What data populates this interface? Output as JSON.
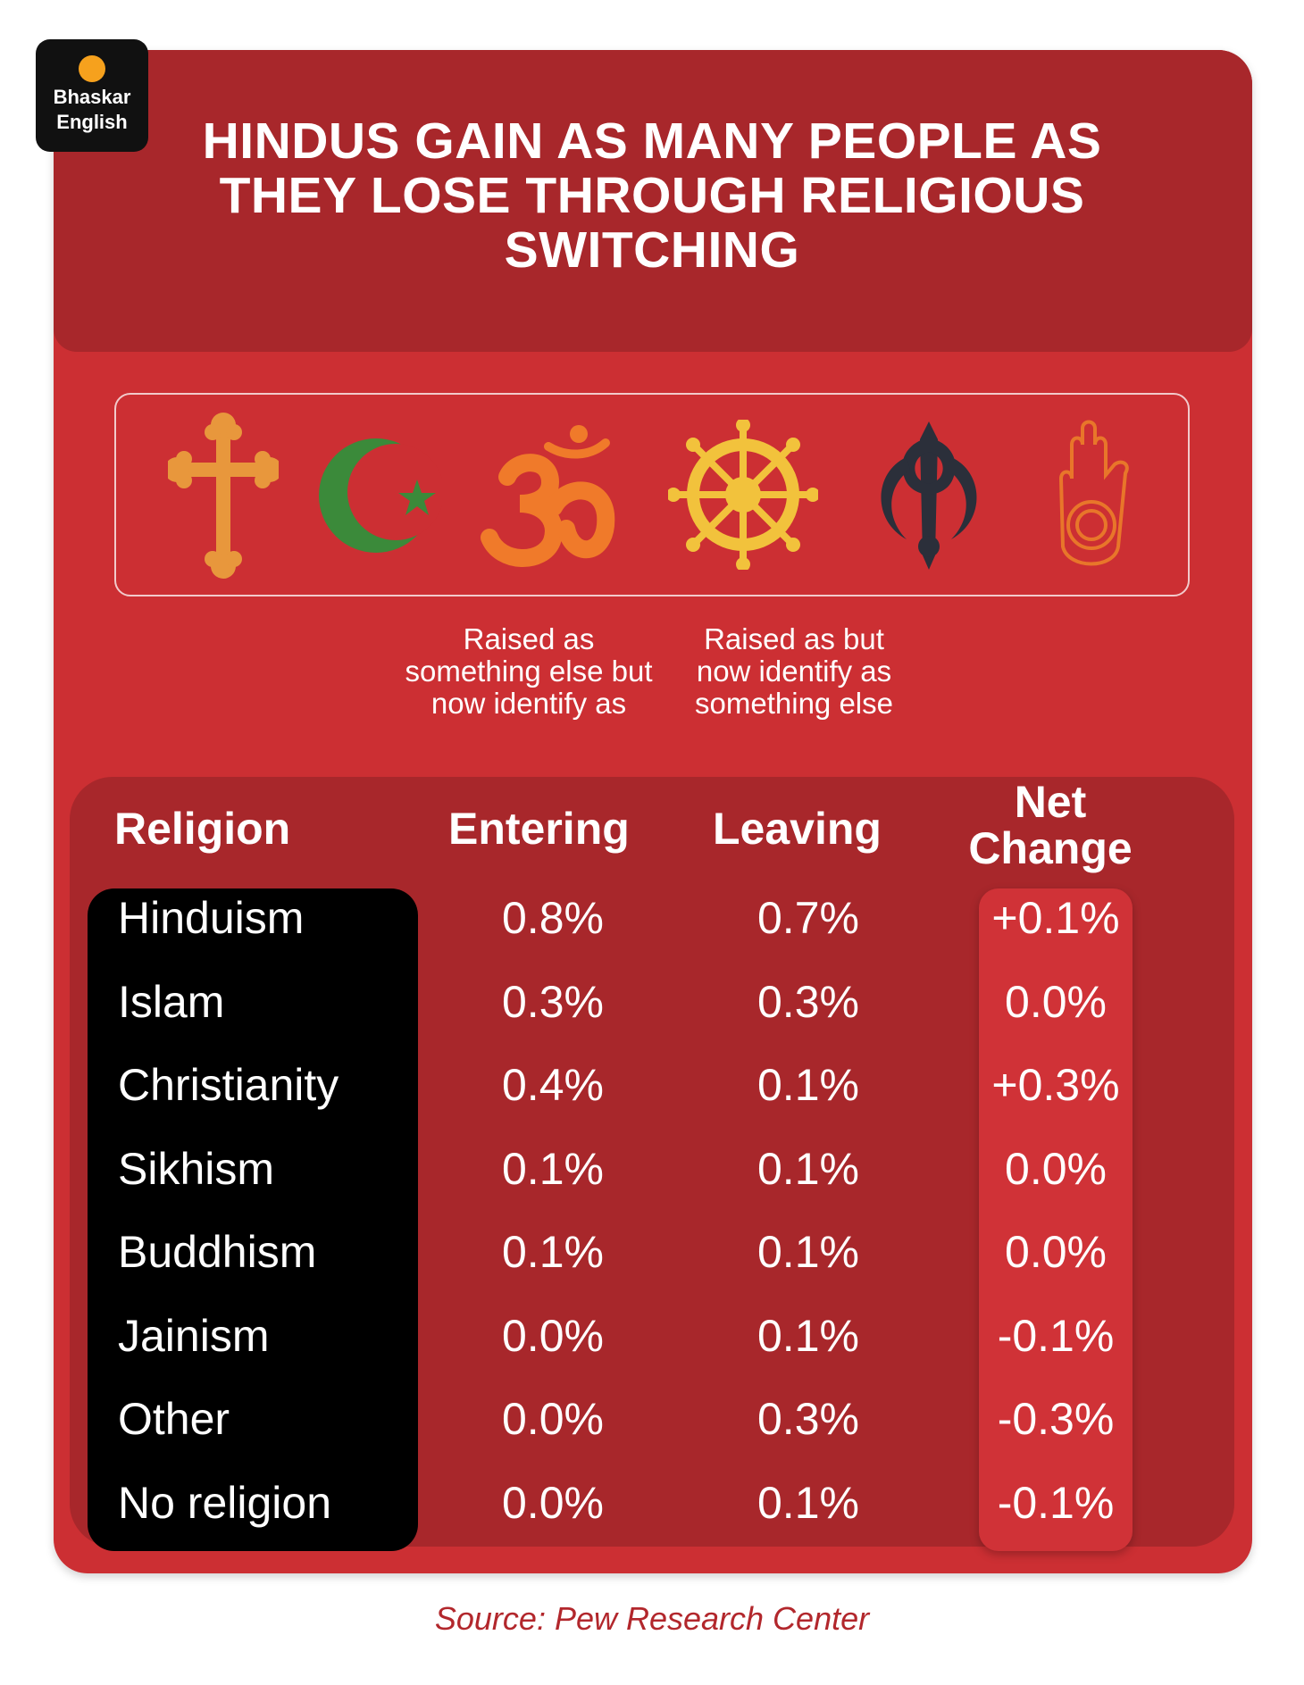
{
  "logo": {
    "line1": "Bhaskar",
    "line2": "English"
  },
  "title": "HINDUS GAIN AS MANY PEOPLE AS THEY LOSE THROUGH RELIGIOUS SWITCHING",
  "icons": [
    "christian-cross-icon",
    "islam-crescent-star-icon",
    "hindu-om-icon",
    "dharma-wheel-icon",
    "sikh-khanda-icon",
    "jain-hand-icon"
  ],
  "descriptions": {
    "entering": "Raised as something else but now identify as",
    "leaving": "Raised as but now identify as something else"
  },
  "chart_data": {
    "type": "table",
    "columns": [
      "Religion",
      "Entering",
      "Leaving",
      "Net Change"
    ],
    "rows": [
      {
        "religion": "Hinduism",
        "entering": "0.8%",
        "leaving": "0.7%",
        "net": "+0.1%"
      },
      {
        "religion": "Islam",
        "entering": "0.3%",
        "leaving": "0.3%",
        "net": "0.0%"
      },
      {
        "religion": "Christianity",
        "entering": "0.4%",
        "leaving": "0.1%",
        "net": "+0.3%"
      },
      {
        "religion": "Sikhism",
        "entering": "0.1%",
        "leaving": "0.1%",
        "net": "0.0%"
      },
      {
        "religion": "Buddhism",
        "entering": "0.1%",
        "leaving": "0.1%",
        "net": "0.0%"
      },
      {
        "religion": "Jainism",
        "entering": "0.0%",
        "leaving": "0.1%",
        "net": "-0.1%"
      },
      {
        "religion": "Other",
        "entering": "0.0%",
        "leaving": "0.3%",
        "net": "-0.3%"
      },
      {
        "religion": "No religion",
        "entering": "0.0%",
        "leaving": "0.1%",
        "net": "-0.1%"
      }
    ]
  },
  "source": "Source: Pew Research Center",
  "colors": {
    "card": "#cc2f33",
    "panel": "#a8272b",
    "names_bg": "#000000",
    "net_bg": "#d03237",
    "cross": "#e8973c",
    "crescent": "#3b8a3a",
    "om": "#f07a2a",
    "wheel": "#f2c23c",
    "khanda": "#2b2f3a",
    "jain": "#e8762a"
  }
}
